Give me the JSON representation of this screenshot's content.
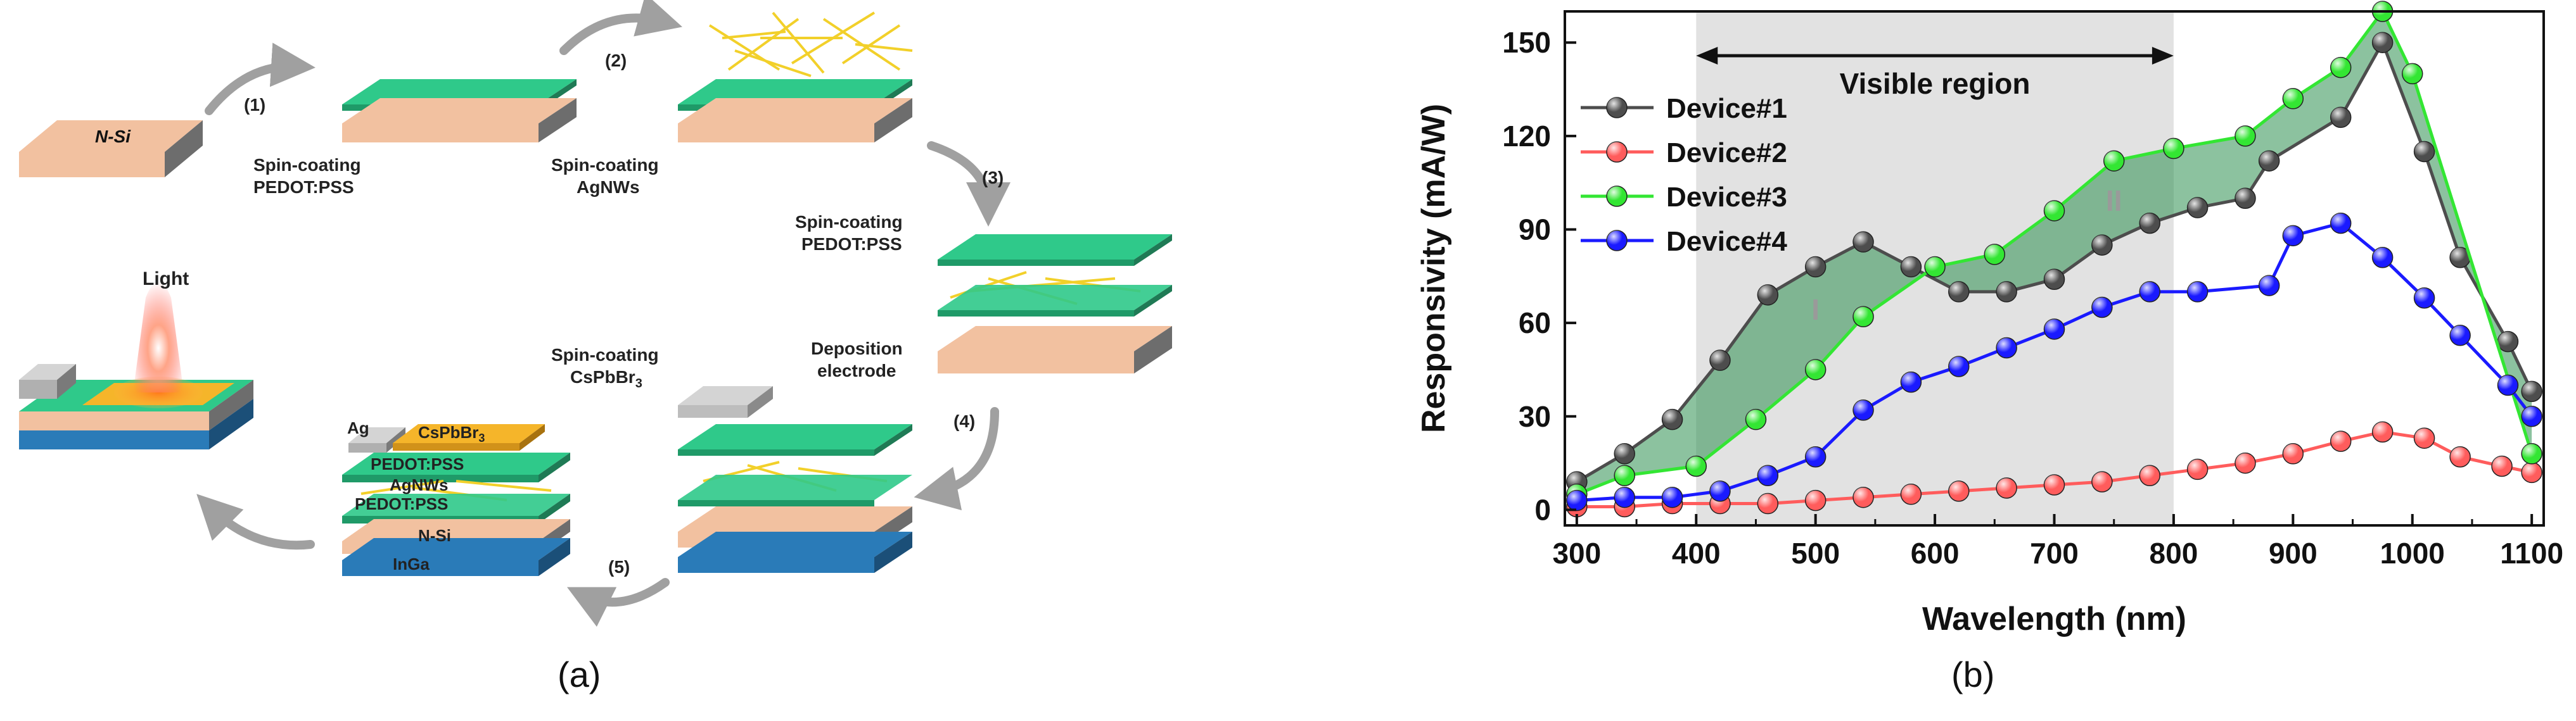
{
  "panel_a": {
    "label": "(a)",
    "substrate_label": "N-Si",
    "steps": [
      "(1)",
      "(2)",
      "(3)",
      "(4)",
      "(5)"
    ],
    "captions": {
      "pedot1": [
        "Spin-coating",
        "PEDOT:PSS"
      ],
      "agnws": [
        "Spin-coating",
        "AgNWs"
      ],
      "pedot2": [
        "Spin-coating",
        "PEDOT:PSS"
      ],
      "electrode": [
        "Deposition",
        "electrode"
      ],
      "cspbbr3": [
        "Spin-coating",
        "CsPbBr",
        "3"
      ]
    },
    "light_label": "Light",
    "stack_labels": {
      "ag": "Ag",
      "cspbbr3_main": "CsPbBr",
      "cspbbr3_sub": "3",
      "pedot_top": "PEDOT:PSS",
      "agnws": "AgNWs",
      "pedot_bottom": "PEDOT:PSS",
      "nsi": "N-Si",
      "inga": "InGa"
    },
    "colors": {
      "silicon": "#f2c1a0",
      "silicon_side": "#6d6d6d",
      "pedot": "#2fc98a",
      "nanowire": "#f2d02a",
      "inga": "#2a7bb8",
      "cspbbr3": "#f5b52a",
      "silver": "#d4d4d4",
      "arrow": "#a0a0a0"
    }
  },
  "panel_b": {
    "label": "(b)",
    "region_label": "Visible region",
    "annotation_I": "I",
    "annotation_II": "II"
  },
  "chart_data": {
    "type": "line",
    "xlabel": "Wavelength (nm)",
    "ylabel": "Responsivity (mA/W)",
    "xlim": [
      290,
      1110
    ],
    "ylim": [
      -5,
      160
    ],
    "xticks": [
      300,
      400,
      500,
      600,
      700,
      800,
      900,
      1000,
      1100
    ],
    "yticks": [
      0,
      30,
      60,
      90,
      120,
      150
    ],
    "legend_position": "top-left",
    "grid": false,
    "visible_region": [
      400,
      800
    ],
    "series": [
      {
        "name": "Device#1",
        "color": "#4d4d4d",
        "x": [
          300,
          340,
          380,
          420,
          460,
          500,
          540,
          580,
          620,
          660,
          700,
          740,
          780,
          820,
          860,
          880,
          940,
          975,
          1010,
          1040,
          1080,
          1100
        ],
        "y": [
          9,
          18,
          29,
          48,
          69,
          78,
          86,
          78,
          70,
          70,
          74,
          85,
          92,
          97,
          100,
          112,
          126,
          150,
          115,
          81,
          54,
          38
        ]
      },
      {
        "name": "Device#2",
        "color": "#ff5c5c",
        "x": [
          300,
          340,
          380,
          420,
          460,
          500,
          540,
          580,
          620,
          660,
          700,
          740,
          780,
          820,
          860,
          900,
          940,
          975,
          1010,
          1040,
          1075,
          1100
        ],
        "y": [
          1,
          1,
          2,
          2,
          2,
          3,
          4,
          5,
          6,
          7,
          8,
          9,
          11,
          13,
          15,
          18,
          22,
          25,
          23,
          17,
          14,
          12
        ]
      },
      {
        "name": "Device#3",
        "color": "#33e633",
        "x": [
          300,
          340,
          400,
          450,
          500,
          540,
          600,
          650,
          700,
          750,
          800,
          860,
          900,
          940,
          975,
          1000,
          1100
        ],
        "y": [
          5,
          11,
          14,
          29,
          45,
          62,
          78,
          82,
          96,
          112,
          116,
          120,
          132,
          142,
          160,
          140,
          18
        ]
      },
      {
        "name": "Device#4",
        "color": "#1a1aff",
        "x": [
          300,
          340,
          380,
          420,
          460,
          500,
          540,
          580,
          620,
          660,
          700,
          740,
          780,
          820,
          880,
          900,
          940,
          975,
          1010,
          1040,
          1080,
          1100
        ],
        "y": [
          3,
          4,
          4,
          6,
          11,
          17,
          32,
          41,
          46,
          52,
          58,
          65,
          70,
          70,
          72,
          88,
          92,
          81,
          68,
          56,
          40,
          30
        ]
      }
    ],
    "shaded_region_color": "#e2e2e2",
    "fill_between_color": "#2e8f50"
  }
}
